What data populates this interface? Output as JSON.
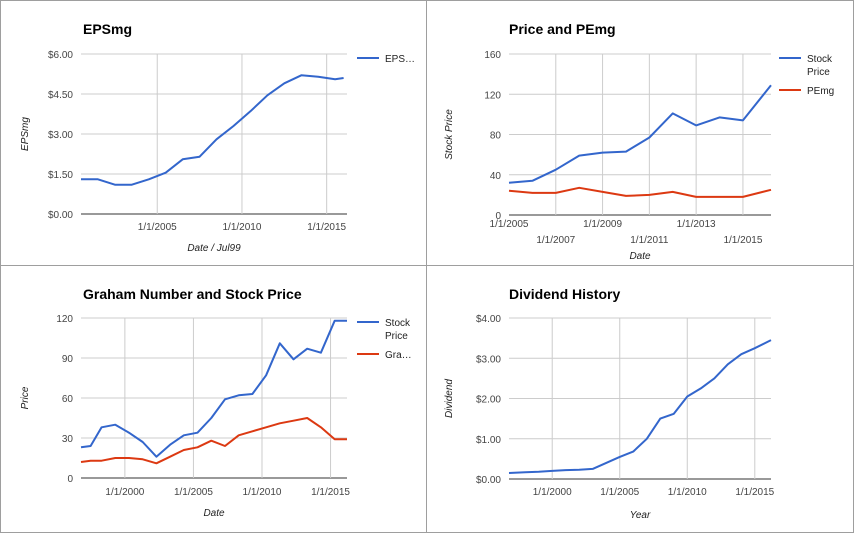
{
  "chart_data": [
    {
      "type": "line",
      "title": "EPSmg",
      "xlabel": "Date / Jul99",
      "ylabel": "EPSmg",
      "ylim": [
        0,
        6
      ],
      "y_ticks": [
        "$0.00",
        "$1.50",
        "$3.00",
        "$4.50",
        "$6.00"
      ],
      "y_tick_values": [
        0,
        1.5,
        3,
        4.5,
        6
      ],
      "x_ticks": [
        "1/1/2005",
        "1/1/2010",
        "1/1/2015"
      ],
      "x_tick_values": [
        2005,
        2010,
        2015
      ],
      "xlim": [
        2000.5,
        2016.2
      ],
      "grid": true,
      "legend": "right",
      "series": [
        {
          "name": "EPS…",
          "color": "#3366cc",
          "x": [
            2000.5,
            2001.5,
            2002.5,
            2003.5,
            2004.5,
            2005.5,
            2006.5,
            2007.5,
            2008.5,
            2009.5,
            2010.5,
            2011.5,
            2012.5,
            2013.5,
            2014.5,
            2015.5,
            2016.0
          ],
          "y": [
            1.3,
            1.3,
            1.1,
            1.1,
            1.3,
            1.55,
            2.05,
            2.15,
            2.8,
            3.3,
            3.85,
            4.45,
            4.9,
            5.2,
            5.15,
            5.05,
            5.1
          ]
        }
      ]
    },
    {
      "type": "line",
      "title": "Price and PEmg",
      "xlabel": "Date",
      "ylabel": "Stock Price",
      "ylim": [
        0,
        160
      ],
      "y_ticks": [
        "0",
        "40",
        "80",
        "120",
        "160"
      ],
      "y_tick_values": [
        0,
        40,
        80,
        120,
        160
      ],
      "x_ticks": [
        "1/1/2005",
        "1/1/2007",
        "1/1/2009",
        "1/1/2011",
        "1/1/2013",
        "1/1/2015"
      ],
      "x_tick_values": [
        2005,
        2007,
        2009,
        2011,
        2013,
        2015
      ],
      "xlim": [
        2005,
        2016.2
      ],
      "grid": true,
      "legend": "right",
      "series": [
        {
          "name": "Stock Price",
          "color": "#3366cc",
          "x": [
            2005,
            2006,
            2007,
            2008,
            2009,
            2010,
            2011,
            2012,
            2013,
            2014,
            2015,
            2016.2
          ],
          "y": [
            32,
            34,
            45,
            59,
            62,
            63,
            77,
            101,
            89,
            97,
            94,
            129
          ]
        },
        {
          "name": "PEmg",
          "color": "#dc3912",
          "x": [
            2005,
            2006,
            2007,
            2008,
            2009,
            2010,
            2011,
            2012,
            2013,
            2014,
            2015,
            2016.2
          ],
          "y": [
            24,
            22,
            22,
            27,
            23,
            19,
            20,
            23,
            18,
            18,
            18,
            25
          ]
        }
      ]
    },
    {
      "type": "line",
      "title": "Graham Number and Stock Price",
      "xlabel": "Date",
      "ylabel": "Price",
      "ylim": [
        0,
        120
      ],
      "y_ticks": [
        "0",
        "30",
        "60",
        "90",
        "120"
      ],
      "y_tick_values": [
        0,
        30,
        60,
        90,
        120
      ],
      "x_ticks": [
        "1/1/2000",
        "1/1/2005",
        "1/1/2010",
        "1/1/2015"
      ],
      "x_tick_values": [
        2000,
        2005,
        2010,
        2015
      ],
      "xlim": [
        1996.8,
        2016.2
      ],
      "grid": true,
      "legend": "right",
      "series": [
        {
          "name": "Stock Price",
          "color": "#3366cc",
          "x": [
            1996.8,
            1997.5,
            1998.3,
            1999.3,
            2000.3,
            2001.3,
            2002.3,
            2003.3,
            2004.3,
            2005.3,
            2006.3,
            2007.3,
            2008.3,
            2009.3,
            2010.3,
            2011.3,
            2012.3,
            2013.3,
            2014.3,
            2015.3,
            2016.2
          ],
          "y": [
            23,
            24,
            38,
            40,
            34,
            27,
            16,
            25,
            32,
            34,
            45,
            59,
            62,
            63,
            77,
            101,
            89,
            97,
            94,
            118,
            118
          ]
        },
        {
          "name": "Gra…",
          "color": "#dc3912",
          "x": [
            1996.8,
            1997.5,
            1998.3,
            1999.3,
            2000.3,
            2001.3,
            2002.3,
            2003.3,
            2004.3,
            2005.3,
            2006.3,
            2007.3,
            2008.3,
            2009.3,
            2010.3,
            2011.3,
            2012.3,
            2013.3,
            2014.3,
            2015.3,
            2016.2
          ],
          "y": [
            12,
            13,
            13,
            15,
            15,
            14,
            11,
            16,
            21,
            23,
            28,
            24,
            32,
            35,
            38,
            41,
            43,
            45,
            38,
            29,
            29
          ]
        }
      ]
    },
    {
      "type": "line",
      "title": "Dividend History",
      "xlabel": "Year",
      "ylabel": "Dividend",
      "ylim": [
        0,
        4
      ],
      "y_ticks": [
        "$0.00",
        "$1.00",
        "$2.00",
        "$3.00",
        "$4.00"
      ],
      "y_tick_values": [
        0,
        1,
        2,
        3,
        4
      ],
      "x_ticks": [
        "1/1/2000",
        "1/1/2005",
        "1/1/2010",
        "1/1/2015"
      ],
      "x_tick_values": [
        2000,
        2005,
        2010,
        2015
      ],
      "xlim": [
        1996.8,
        2016.2
      ],
      "grid": true,
      "legend": "none",
      "series": [
        {
          "name": "",
          "color": "#3366cc",
          "x": [
            1996.8,
            1998,
            1999,
            2000,
            2001,
            2002,
            2003,
            2004,
            2005,
            2006,
            2007,
            2008,
            2009,
            2010,
            2011,
            2012,
            2013,
            2014,
            2015,
            2016.2
          ],
          "y": [
            0.15,
            0.17,
            0.18,
            0.2,
            0.22,
            0.23,
            0.25,
            0.4,
            0.55,
            0.68,
            1.0,
            1.5,
            1.62,
            2.05,
            2.25,
            2.5,
            2.85,
            3.1,
            3.25,
            3.45
          ]
        }
      ]
    }
  ]
}
